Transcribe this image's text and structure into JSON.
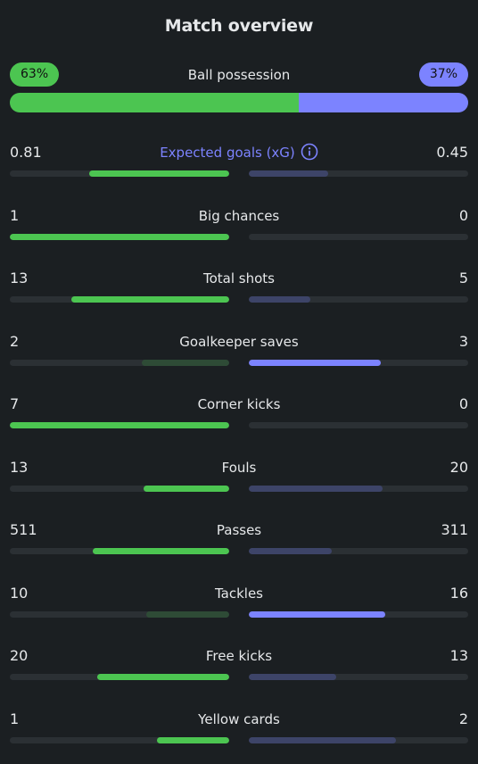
{
  "title": "Match overview",
  "possession": {
    "label": "Ball possession",
    "home_label": "63%",
    "away_label": "37%",
    "home_pct": 63,
    "away_pct": 37
  },
  "colors": {
    "home_strong": "#4cc551",
    "home_weak": "#2e4b36",
    "away_strong": "#7c83ff",
    "away_weak": "#3d4468",
    "track": "#2b3034",
    "background": "#1b1f22"
  },
  "stats": [
    {
      "label": "Expected goals (xG)",
      "home": "0.81",
      "away": "0.45",
      "home_fill": 0.64,
      "away_fill": 0.36,
      "home_strong": true,
      "away_strong": false,
      "accent": true,
      "icon": "info-icon"
    },
    {
      "label": "Big chances",
      "home": "1",
      "away": "0",
      "home_fill": 1.0,
      "away_fill": 0.0,
      "home_strong": true,
      "away_strong": false
    },
    {
      "label": "Total shots",
      "home": "13",
      "away": "5",
      "home_fill": 0.72,
      "away_fill": 0.28,
      "home_strong": true,
      "away_strong": false
    },
    {
      "label": "Goalkeeper saves",
      "home": "2",
      "away": "3",
      "home_fill": 0.4,
      "away_fill": 0.6,
      "home_strong": false,
      "away_strong": true
    },
    {
      "label": "Corner kicks",
      "home": "7",
      "away": "0",
      "home_fill": 1.0,
      "away_fill": 0.0,
      "home_strong": true,
      "away_strong": false
    },
    {
      "label": "Fouls",
      "home": "13",
      "away": "20",
      "home_fill": 0.39,
      "away_fill": 0.61,
      "home_strong": true,
      "away_strong": false
    },
    {
      "label": "Passes",
      "home": "511",
      "away": "311",
      "home_fill": 0.62,
      "away_fill": 0.38,
      "home_strong": true,
      "away_strong": false
    },
    {
      "label": "Tackles",
      "home": "10",
      "away": "16",
      "home_fill": 0.38,
      "away_fill": 0.62,
      "home_strong": false,
      "away_strong": true
    },
    {
      "label": "Free kicks",
      "home": "20",
      "away": "13",
      "home_fill": 0.6,
      "away_fill": 0.4,
      "home_strong": true,
      "away_strong": false
    },
    {
      "label": "Yellow cards",
      "home": "1",
      "away": "2",
      "home_fill": 0.33,
      "away_fill": 0.67,
      "home_strong": true,
      "away_strong": false
    }
  ]
}
